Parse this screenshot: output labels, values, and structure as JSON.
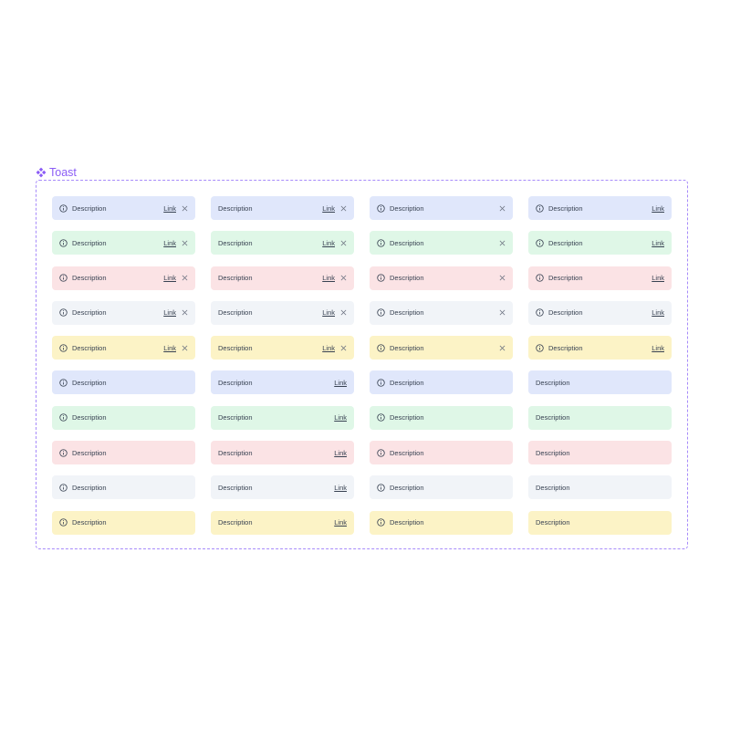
{
  "frame": {
    "title": "Toast",
    "icon": "component-icon",
    "accent": "#8b5cf6"
  },
  "colors": {
    "blue": "#e0e7fb",
    "green": "#dff7e7",
    "red": "#fbe3e5",
    "gray": "#f1f4f8",
    "yellow": "#fcf3c6",
    "text": "#374151"
  },
  "toasts": [
    {
      "variant": "blue",
      "icon": true,
      "description": "Description",
      "link": "Link",
      "close": true
    },
    {
      "variant": "blue",
      "icon": false,
      "description": "Description",
      "link": "Link",
      "close": true
    },
    {
      "variant": "blue",
      "icon": true,
      "description": "Description",
      "link": null,
      "close": true
    },
    {
      "variant": "blue",
      "icon": true,
      "description": "Description",
      "link": "Link",
      "close": false
    },
    {
      "variant": "green",
      "icon": true,
      "description": "Description",
      "link": "Link",
      "close": true
    },
    {
      "variant": "green",
      "icon": false,
      "description": "Description",
      "link": "Link",
      "close": true
    },
    {
      "variant": "green",
      "icon": true,
      "description": "Description",
      "link": null,
      "close": true
    },
    {
      "variant": "green",
      "icon": true,
      "description": "Description",
      "link": "Link",
      "close": false
    },
    {
      "variant": "red",
      "icon": true,
      "description": "Description",
      "link": "Link",
      "close": true
    },
    {
      "variant": "red",
      "icon": false,
      "description": "Description",
      "link": "Link",
      "close": true
    },
    {
      "variant": "red",
      "icon": true,
      "description": "Description",
      "link": null,
      "close": true
    },
    {
      "variant": "red",
      "icon": true,
      "description": "Description",
      "link": "Link",
      "close": false
    },
    {
      "variant": "gray",
      "icon": true,
      "description": "Description",
      "link": "Link",
      "close": true
    },
    {
      "variant": "gray",
      "icon": false,
      "description": "Description",
      "link": "Link",
      "close": true
    },
    {
      "variant": "gray",
      "icon": true,
      "description": "Description",
      "link": null,
      "close": true
    },
    {
      "variant": "gray",
      "icon": true,
      "description": "Description",
      "link": "Link",
      "close": false
    },
    {
      "variant": "yellow",
      "icon": true,
      "description": "Description",
      "link": "Link",
      "close": true
    },
    {
      "variant": "yellow",
      "icon": false,
      "description": "Description",
      "link": "Link",
      "close": true
    },
    {
      "variant": "yellow",
      "icon": true,
      "description": "Description",
      "link": null,
      "close": true
    },
    {
      "variant": "yellow",
      "icon": true,
      "description": "Description",
      "link": "Link",
      "close": false
    },
    {
      "variant": "blue",
      "icon": true,
      "description": "Description",
      "link": null,
      "close": false
    },
    {
      "variant": "blue",
      "icon": false,
      "description": "Description",
      "link": "Link",
      "close": false
    },
    {
      "variant": "blue",
      "icon": true,
      "description": "Description",
      "link": null,
      "close": false
    },
    {
      "variant": "blue",
      "icon": false,
      "description": "Description",
      "link": null,
      "close": false
    },
    {
      "variant": "green",
      "icon": true,
      "description": "Description",
      "link": null,
      "close": false
    },
    {
      "variant": "green",
      "icon": false,
      "description": "Description",
      "link": "Link",
      "close": false
    },
    {
      "variant": "green",
      "icon": true,
      "description": "Description",
      "link": null,
      "close": false
    },
    {
      "variant": "green",
      "icon": false,
      "description": "Description",
      "link": null,
      "close": false
    },
    {
      "variant": "red",
      "icon": true,
      "description": "Description",
      "link": null,
      "close": false
    },
    {
      "variant": "red",
      "icon": false,
      "description": "Description",
      "link": "Link",
      "close": false
    },
    {
      "variant": "red",
      "icon": true,
      "description": "Description",
      "link": null,
      "close": false
    },
    {
      "variant": "red",
      "icon": false,
      "description": "Description",
      "link": null,
      "close": false
    },
    {
      "variant": "gray",
      "icon": true,
      "description": "Description",
      "link": null,
      "close": false
    },
    {
      "variant": "gray",
      "icon": false,
      "description": "Description",
      "link": "Link",
      "close": false
    },
    {
      "variant": "gray",
      "icon": true,
      "description": "Description",
      "link": null,
      "close": false
    },
    {
      "variant": "gray",
      "icon": false,
      "description": "Description",
      "link": null,
      "close": false
    },
    {
      "variant": "yellow",
      "icon": true,
      "description": "Description",
      "link": null,
      "close": false
    },
    {
      "variant": "yellow",
      "icon": false,
      "description": "Description",
      "link": "Link",
      "close": false
    },
    {
      "variant": "yellow",
      "icon": true,
      "description": "Description",
      "link": null,
      "close": false
    },
    {
      "variant": "yellow",
      "icon": false,
      "description": "Description",
      "link": null,
      "close": false
    }
  ]
}
